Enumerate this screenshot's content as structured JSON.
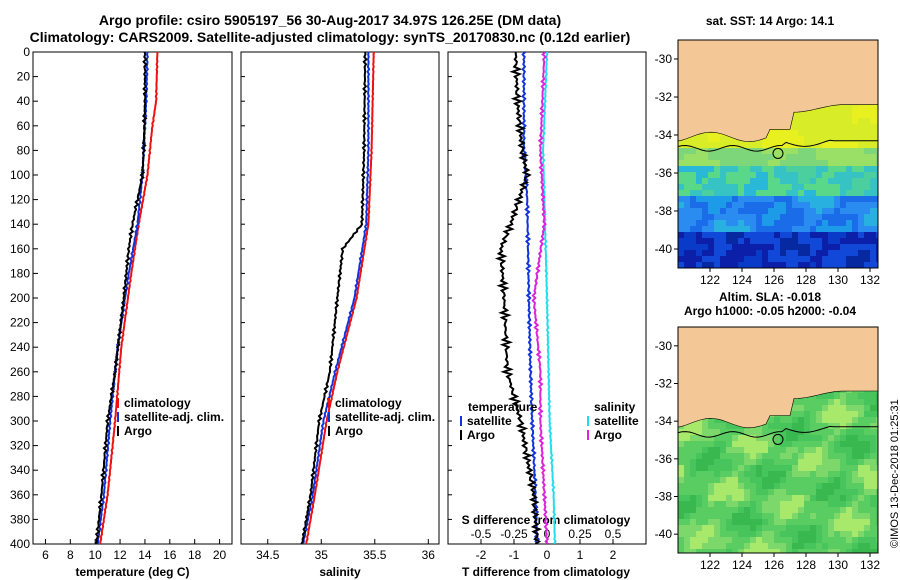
{
  "title": {
    "line1": "Argo profile: csiro 5905197_56 30-Aug-2017 34.97S 126.25E (DM data)",
    "line2": "Climatology: CARS2009. Satellite-adjusted climatology: synTS_20170830.nc (0.12d earlier)"
  },
  "credit": "©IMOS 13-Dec-2018 01:25:31",
  "colors": {
    "climatology": "#ee1111",
    "satellite": "#1133dd",
    "argo": "#000000",
    "sal_satellite": "#22ddee",
    "sal_argo": "#dd22dd",
    "land": "#f4c896"
  },
  "chart_data": [
    {
      "type": "line",
      "name": "temperature",
      "xlabel": "temperature (deg C)",
      "ylabel": "",
      "xlim": [
        5,
        21
      ],
      "ylim": [
        400,
        0
      ],
      "xticks": [
        6,
        8,
        10,
        12,
        14,
        16,
        18,
        20
      ],
      "yticks": [
        0,
        20,
        40,
        60,
        80,
        100,
        120,
        140,
        160,
        180,
        200,
        220,
        240,
        260,
        280,
        300,
        320,
        340,
        360,
        380,
        400
      ],
      "legend": [
        "climatology",
        "satellite-adj. clim.",
        "Argo"
      ],
      "series": [
        {
          "name": "climatology",
          "depth": [
            0,
            40,
            60,
            100,
            140,
            180,
            240,
            300,
            360,
            400
          ],
          "values": [
            15.0,
            14.9,
            14.6,
            14.2,
            13.5,
            12.9,
            12.1,
            11.6,
            11.0,
            10.4
          ]
        },
        {
          "name": "satellite-adj. clim.",
          "depth": [
            0,
            40,
            80,
            100,
            140,
            180,
            240,
            300,
            360,
            400
          ],
          "values": [
            14.2,
            14.1,
            13.9,
            13.8,
            13.4,
            12.7,
            11.8,
            11.2,
            10.7,
            10.2
          ]
        },
        {
          "name": "Argo",
          "depth": [
            0,
            40,
            80,
            100,
            140,
            160,
            200,
            260,
            300,
            360,
            400
          ],
          "values": [
            14.0,
            14.0,
            13.9,
            13.8,
            13.0,
            12.7,
            12.3,
            11.6,
            11.0,
            10.5,
            10.1
          ]
        }
      ]
    },
    {
      "type": "line",
      "name": "salinity",
      "xlabel": "salinity",
      "xlim": [
        34.25,
        36.1
      ],
      "ylim": [
        400,
        0
      ],
      "xticks": [
        34.5,
        35,
        35.5,
        36
      ],
      "legend": [
        "climatology",
        "satellite-adj. clim.",
        "Argo"
      ],
      "series": [
        {
          "name": "climatology",
          "depth": [
            0,
            80,
            140,
            200,
            260,
            300,
            360,
            400
          ],
          "values": [
            35.49,
            35.47,
            35.44,
            35.33,
            35.15,
            35.05,
            34.94,
            34.86
          ]
        },
        {
          "name": "satellite-adj. clim.",
          "depth": [
            0,
            80,
            140,
            200,
            260,
            300,
            360,
            400
          ],
          "values": [
            35.44,
            35.44,
            35.42,
            35.31,
            35.13,
            35.02,
            34.92,
            34.83
          ]
        },
        {
          "name": "Argo",
          "depth": [
            0,
            80,
            140,
            160,
            200,
            260,
            300,
            360,
            400
          ],
          "values": [
            35.41,
            35.4,
            35.38,
            35.2,
            35.15,
            35.08,
            34.98,
            34.9,
            34.82
          ]
        }
      ]
    },
    {
      "type": "line",
      "name": "difference",
      "xlabel": "T difference from climatology",
      "x2label": "S difference from climatology",
      "xlim": [
        -3,
        3
      ],
      "x2lim": [
        -0.75,
        0.75
      ],
      "ylim": [
        400,
        0
      ],
      "xticks": [
        -2,
        -1,
        0,
        1,
        2
      ],
      "x2ticks": [
        -0.5,
        -0.25,
        0,
        0.25,
        0.5
      ],
      "legend_temperature_title": "temperature",
      "legend_salinity_title": "salinity",
      "legend_items": [
        "satellite",
        "Argo"
      ],
      "series": [
        {
          "name": "T satellite",
          "depth": [
            0,
            40,
            80,
            120,
            200,
            260,
            300,
            360,
            400
          ],
          "values": [
            -0.7,
            -0.7,
            -0.7,
            -0.6,
            -0.55,
            -0.5,
            -0.45,
            -0.35,
            -0.3
          ]
        },
        {
          "name": "T Argo",
          "depth": [
            0,
            40,
            80,
            100,
            140,
            160,
            200,
            260,
            300,
            360,
            400
          ],
          "values": [
            -0.95,
            -0.9,
            -0.75,
            -0.6,
            -1.1,
            -1.4,
            -1.3,
            -1.2,
            -0.8,
            -0.4,
            -0.3
          ]
        },
        {
          "name": "S satellite",
          "depth": [
            0,
            80,
            200,
            300,
            360,
            400
          ],
          "values": [
            0.0,
            -0.03,
            0.0,
            0.02,
            0.05,
            0.06
          ]
        },
        {
          "name": "S Argo",
          "depth": [
            0,
            80,
            140,
            200,
            260,
            300,
            360,
            400
          ],
          "values": [
            -0.02,
            -0.05,
            -0.02,
            -0.1,
            -0.05,
            -0.05,
            -0.02,
            0.0
          ]
        }
      ]
    },
    {
      "type": "heatmap",
      "name": "sst_map",
      "title": "sat. SST: 14 Argo: 14.1",
      "xlim": [
        120,
        132.5
      ],
      "ylim": [
        -41,
        -29
      ],
      "xticks": [
        122,
        124,
        126,
        128,
        130,
        132
      ],
      "yticks": [
        -30,
        -32,
        -34,
        -36,
        -38,
        -40
      ],
      "float_lon": 126.25,
      "float_lat": -34.97
    },
    {
      "type": "heatmap",
      "name": "sla_map",
      "title": "Altim. SLA: -0.018",
      "subtitle": "Argo h1000: -0.05 h2000: -0.04",
      "xlim": [
        120,
        132.5
      ],
      "ylim": [
        -41,
        -29
      ],
      "xticks": [
        122,
        124,
        126,
        128,
        130,
        132
      ],
      "yticks": [
        -30,
        -32,
        -34,
        -36,
        -38,
        -40
      ],
      "float_lon": 126.25,
      "float_lat": -34.97
    }
  ]
}
